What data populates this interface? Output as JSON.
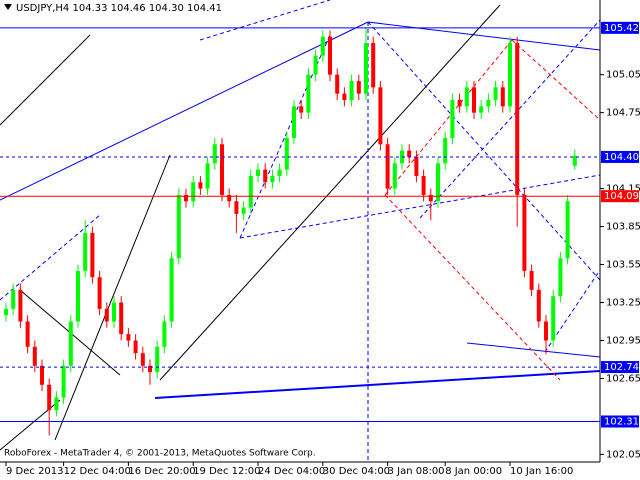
{
  "chart_data": {
    "type": "candlestick",
    "title": "USDJPY,H4  104.33 104.46 104.30 104.41",
    "footer": "RoboForex - MetaTrader 4, © 2001-2013, MetaQuotes Software Corp.",
    "categories": [
      "9 Dec 2013",
      null,
      null,
      null,
      null,
      null,
      null,
      null,
      "12 Dec 04:00",
      null,
      null,
      null,
      null,
      null,
      null,
      null,
      null,
      "16 Dec 20:00",
      null,
      null,
      null,
      null,
      null,
      null,
      null,
      null,
      "19 Dec 12:00",
      null,
      null,
      null,
      null,
      null,
      null,
      null,
      null,
      "24 Dec 04:00",
      null,
      null,
      null,
      null,
      null,
      null,
      null,
      null,
      "30 Dec 04:00",
      null,
      null,
      null,
      null,
      null,
      null,
      null,
      null,
      "3 Jan 08:00",
      null,
      null,
      null,
      null,
      null,
      null,
      null,
      "8 Jan 00:00",
      null,
      null,
      null,
      null,
      null,
      null,
      null,
      null,
      "10 Jan 16:00",
      null,
      null,
      null,
      null,
      null,
      null,
      null,
      null,
      null
    ],
    "open": [
      103.15,
      103.2,
      103.35,
      103.1,
      102.9,
      102.75,
      102.6,
      102.4,
      102.5,
      102.75,
      103.1,
      103.5,
      103.8,
      103.45,
      103.2,
      103.1,
      103.25,
      103.0,
      102.95,
      102.85,
      102.75,
      102.7,
      102.9,
      103.1,
      103.6,
      104.1,
      104.05,
      104.2,
      104.15,
      104.35,
      104.5,
      104.1,
      104.05,
      103.95,
      104.0,
      104.25,
      104.3,
      104.2,
      104.25,
      104.3,
      104.55,
      104.8,
      104.75,
      105.05,
      105.2,
      105.35,
      105.05,
      104.9,
      104.85,
      105.0,
      104.9,
      105.3,
      104.95,
      104.5,
      104.15,
      104.35,
      104.45,
      104.4,
      104.25,
      104.1,
      104.05,
      104.35,
      104.55,
      104.85,
      104.8,
      104.95,
      104.75,
      104.8,
      104.85,
      104.95,
      104.8,
      105.3,
      104.1,
      103.5,
      103.35,
      103.1,
      102.95,
      103.3,
      103.6,
      104.33
    ],
    "high": [
      103.25,
      103.4,
      103.4,
      103.15,
      102.95,
      102.8,
      102.65,
      102.55,
      102.8,
      103.15,
      103.55,
      103.9,
      103.85,
      103.5,
      103.25,
      103.3,
      103.3,
      103.05,
      103.0,
      102.9,
      102.8,
      102.95,
      103.15,
      103.65,
      104.15,
      104.15,
      104.25,
      104.25,
      104.4,
      104.55,
      104.55,
      104.15,
      104.1,
      104.05,
      104.3,
      104.35,
      104.35,
      104.3,
      104.35,
      104.6,
      104.85,
      104.85,
      105.1,
      105.25,
      105.4,
      105.4,
      105.1,
      104.95,
      105.05,
      105.05,
      105.42,
      105.35,
      105.0,
      104.55,
      104.4,
      104.5,
      104.5,
      104.45,
      104.3,
      104.15,
      104.4,
      104.6,
      104.9,
      104.9,
      105.0,
      105.0,
      104.85,
      104.9,
      105.0,
      105.0,
      105.35,
      105.35,
      104.15,
      103.55,
      103.4,
      103.15,
      103.35,
      103.65,
      104.1,
      104.46
    ],
    "low": [
      103.1,
      103.15,
      103.05,
      102.85,
      102.7,
      102.55,
      102.2,
      102.35,
      102.45,
      102.7,
      103.05,
      103.45,
      103.4,
      103.15,
      103.05,
      103.05,
      102.95,
      102.9,
      102.8,
      102.7,
      102.6,
      102.65,
      102.85,
      103.05,
      103.55,
      104.0,
      104.0,
      104.1,
      104.1,
      104.3,
      104.05,
      104.0,
      103.8,
      103.9,
      103.95,
      104.2,
      104.15,
      104.15,
      104.2,
      104.25,
      104.5,
      104.7,
      104.7,
      105.0,
      105.15,
      105.0,
      104.85,
      104.8,
      104.8,
      104.85,
      104.85,
      104.9,
      104.45,
      104.1,
      104.1,
      104.3,
      104.35,
      104.2,
      104.05,
      103.9,
      104.0,
      104.3,
      104.5,
      104.75,
      104.75,
      104.7,
      104.7,
      104.75,
      104.8,
      104.75,
      104.75,
      103.85,
      103.45,
      103.3,
      103.05,
      102.84,
      102.9,
      103.25,
      103.55,
      104.3
    ],
    "close": [
      103.2,
      103.35,
      103.1,
      102.9,
      102.75,
      102.6,
      102.4,
      102.5,
      102.75,
      103.1,
      103.5,
      103.8,
      103.45,
      103.2,
      103.1,
      103.25,
      103.0,
      102.95,
      102.85,
      102.75,
      102.7,
      102.9,
      103.1,
      103.6,
      104.1,
      104.05,
      104.2,
      104.15,
      104.35,
      104.5,
      104.1,
      104.05,
      103.95,
      104.0,
      104.25,
      104.3,
      104.2,
      104.25,
      104.3,
      104.55,
      104.8,
      104.75,
      105.05,
      105.2,
      105.35,
      105.05,
      104.9,
      104.85,
      105.0,
      104.9,
      105.3,
      104.95,
      104.5,
      104.15,
      104.35,
      104.45,
      104.4,
      104.25,
      104.1,
      104.05,
      104.35,
      104.55,
      104.85,
      104.8,
      104.95,
      104.75,
      104.8,
      104.85,
      104.95,
      104.8,
      105.3,
      104.1,
      103.5,
      103.35,
      103.1,
      102.95,
      103.3,
      103.6,
      104.05,
      104.41
    ],
    "up_color": "#00ff00",
    "down_color": "#ff0000",
    "ylim": [
      101.99,
      105.64
    ],
    "yticks": [
      105.05,
      104.75,
      104.15,
      103.85,
      103.55,
      103.25,
      102.95,
      102.65,
      102.05
    ],
    "levels": [
      {
        "value": 105.42,
        "color": "#0000ff",
        "style": "solid"
      },
      {
        "value": {
          "value": 104.4,
          "label": "104.40"
        },
        "color": "#0000ff",
        "style": "dashed"
      },
      {
        "value": 104.09,
        "color": "#ff0000",
        "style": "solid"
      },
      {
        "value": 102.74,
        "color": "#0000ff",
        "style": "dashed"
      },
      {
        "value": 102.31,
        "color": "#0000ff",
        "style": "solid"
      }
    ]
  }
}
